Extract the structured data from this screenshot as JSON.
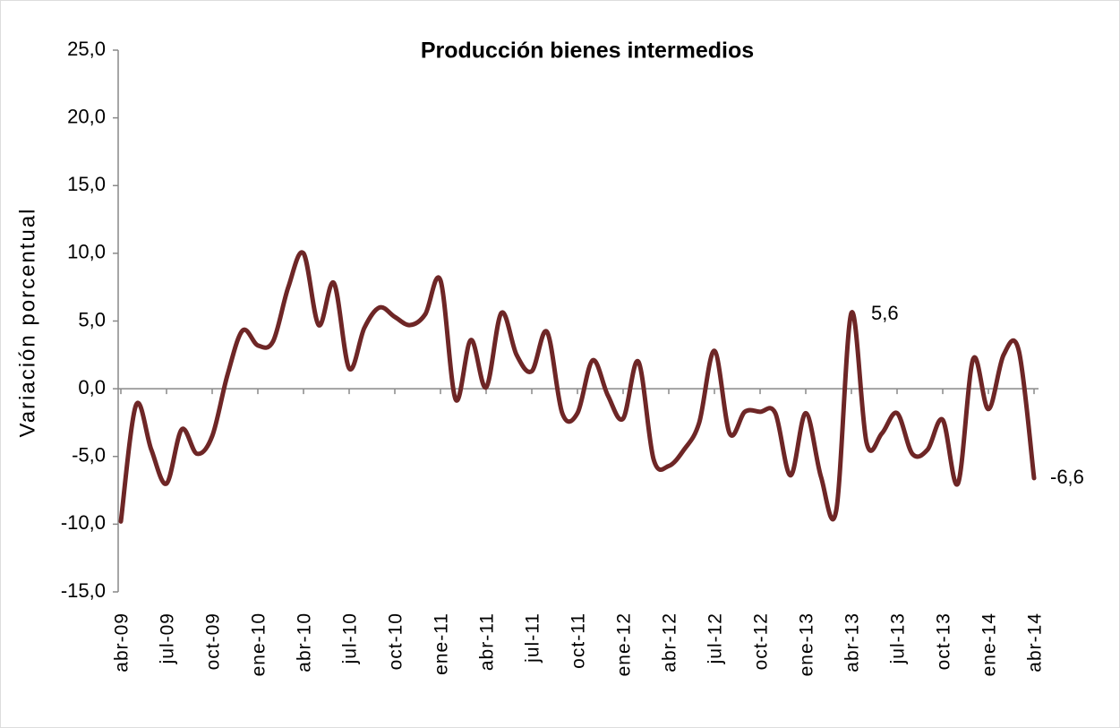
{
  "chart_data": {
    "type": "line",
    "title": "Producción bienes intermedios",
    "y_label": "Variación porcentual",
    "categories": [
      "abr-09",
      null,
      null,
      "jul-09",
      null,
      null,
      "oct-09",
      null,
      null,
      "ene-10",
      null,
      null,
      "abr-10",
      null,
      null,
      "jul-10",
      null,
      null,
      "oct-10",
      null,
      null,
      "ene-11",
      null,
      null,
      "abr-11",
      null,
      null,
      "jul-11",
      null,
      null,
      "oct-11",
      null,
      null,
      "ene-12",
      null,
      null,
      "abr-12",
      null,
      null,
      "jul-12",
      null,
      null,
      "oct-12",
      null,
      null,
      "ene-13",
      null,
      null,
      "abr-13",
      null,
      null,
      "jul-13",
      null,
      null,
      "oct-13",
      null,
      null,
      "ene-14",
      null,
      null,
      "abr-14"
    ],
    "series": [
      {
        "name": "Producción bienes intermedios",
        "color": "#6e2626",
        "values": [
          -9.8,
          -1.2,
          -4.5,
          -7.0,
          -3.0,
          -4.8,
          -3.5,
          1.0,
          4.3,
          3.2,
          3.5,
          7.5,
          10.0,
          4.7,
          7.8,
          1.5,
          4.5,
          6.0,
          5.3,
          4.7,
          5.5,
          8.0,
          -0.8,
          3.6,
          0.1,
          5.6,
          2.5,
          1.3,
          4.2,
          -1.8,
          -1.8,
          2.1,
          -0.5,
          -2.2,
          2.0,
          -5.2,
          -5.7,
          -4.5,
          -2.5,
          2.8,
          -3.3,
          -1.7,
          -1.7,
          -1.8,
          -6.4,
          -1.8,
          -6.5,
          -9.0,
          5.6,
          -4.0,
          -3.3,
          -1.8,
          -4.8,
          -4.5,
          -2.3,
          -7.0,
          2.2,
          -1.5,
          2.5,
          2.8,
          -6.6
        ],
        "value_labels": [
          null,
          null,
          null,
          null,
          null,
          null,
          null,
          null,
          null,
          null,
          null,
          null,
          null,
          null,
          null,
          null,
          null,
          null,
          null,
          null,
          null,
          null,
          null,
          null,
          null,
          null,
          null,
          null,
          null,
          null,
          null,
          null,
          null,
          null,
          null,
          null,
          null,
          null,
          null,
          null,
          null,
          null,
          null,
          null,
          null,
          null,
          null,
          null,
          "5,6",
          null,
          null,
          null,
          null,
          null,
          null,
          null,
          null,
          null,
          null,
          null,
          "-6,6"
        ]
      }
    ],
    "ylim": [
      -15,
      25
    ],
    "yticks": [
      {
        "value": -15,
        "label": "-15,0"
      },
      {
        "value": -10,
        "label": "-10,0"
      },
      {
        "value": -5,
        "label": "-5,0"
      },
      {
        "value": 0,
        "label": "0,0"
      },
      {
        "value": 5,
        "label": "5,0"
      },
      {
        "value": 10,
        "label": "10,0"
      },
      {
        "value": 15,
        "label": "15,0"
      },
      {
        "value": 20,
        "label": "20,0"
      },
      {
        "value": 25,
        "label": "25,0"
      }
    ],
    "grid": false
  }
}
